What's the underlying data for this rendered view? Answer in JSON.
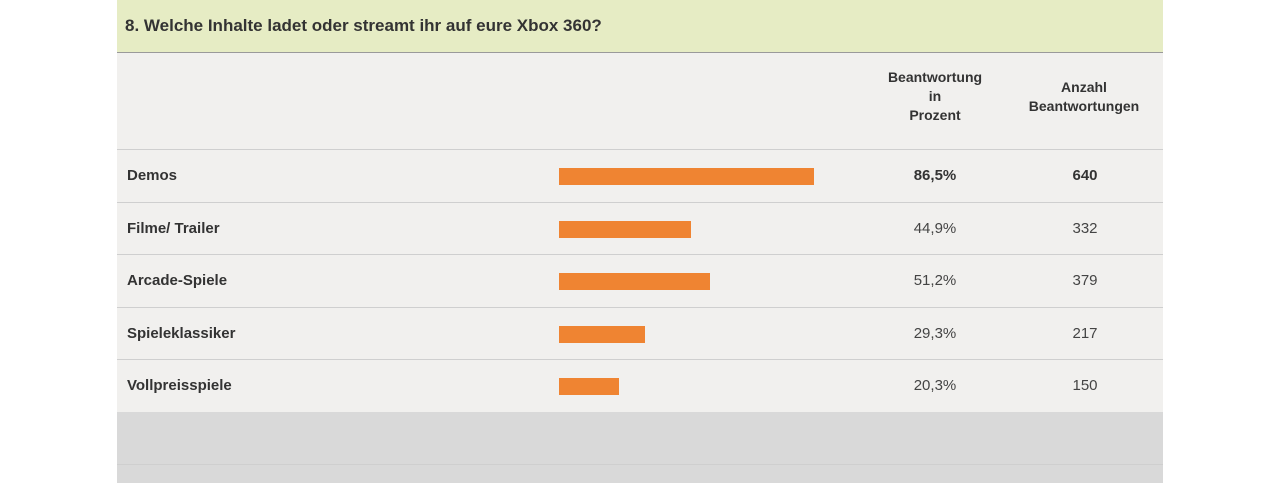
{
  "header": {
    "question": "8. Welche Inhalte ladet oder streamt ihr auf eure Xbox 360?"
  },
  "columns": {
    "percent_line1": "Beantwortung",
    "percent_line2": "in",
    "percent_line3": "Prozent",
    "count_line1": "Anzahl",
    "count_line2": "Beantwortungen"
  },
  "chart_data": {
    "type": "bar",
    "orientation": "horizontal",
    "categories": [
      "Demos",
      "Filme/ Trailer",
      "Arcade-Spiele",
      "Spieleklassiker",
      "Vollpreisspiele"
    ],
    "values": [
      86.5,
      44.9,
      51.2,
      29.3,
      20.3
    ],
    "value_labels": [
      "86,5%",
      "44,9%",
      "51,2%",
      "29,3%",
      "20,3%"
    ],
    "counts": [
      "640",
      "332",
      "379",
      "217",
      "150"
    ],
    "title": "8. Welche Inhalte ladet oder streamt ihr auf eure Xbox 360?",
    "xlim": [
      0,
      100
    ],
    "grid": false,
    "bar_color": "#ef8432"
  },
  "colors": {
    "header_bg": "#e6ecc4",
    "table_bg": "#f1f0ee",
    "footer_bg": "#d9d9d9",
    "bar": "#ef8432"
  }
}
